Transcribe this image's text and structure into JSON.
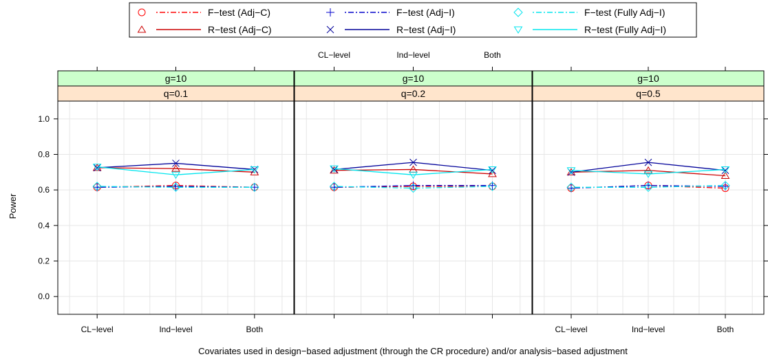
{
  "chart_data": {
    "type": "line",
    "ylabel": "Power",
    "xlabel": "Covariates used in design−based adjustment (through the CR procedure) and/or analysis−based adjustment",
    "categories": [
      "CL−level",
      "Ind−level",
      "Both"
    ],
    "ylim": [
      -0.1,
      1.1
    ],
    "yticks": [
      0.0,
      0.2,
      0.4,
      0.6,
      0.8,
      1.0
    ],
    "ytick_labels": [
      "0.0",
      "0.2",
      "0.4",
      "0.6",
      "0.8",
      "1.0"
    ],
    "grid": true,
    "legend_position": "top",
    "strip_colors": {
      "g": "#ccffcc",
      "q": "#ffe5cc"
    },
    "panels": [
      {
        "strip_g": "g=10",
        "strip_q": "q=0.1",
        "series": [
          {
            "name": "F−test (Adj−C)",
            "values": [
              0.615,
              0.625,
              0.615
            ]
          },
          {
            "name": "R−test (Adj−C)",
            "values": [
              0.725,
              0.72,
              0.7
            ]
          },
          {
            "name": "F−test (Adj−I)",
            "values": [
              0.615,
              0.62,
              0.615
            ]
          },
          {
            "name": "R−test (Adj−I)",
            "values": [
              0.725,
              0.75,
              0.715
            ]
          },
          {
            "name": "F−test (Fully Adj−I)",
            "values": [
              0.62,
              0.615,
              0.615
            ]
          },
          {
            "name": "R−test (Fully Adj−I)",
            "values": [
              0.73,
              0.685,
              0.715
            ]
          }
        ]
      },
      {
        "strip_g": "g=10",
        "strip_q": "q=0.2",
        "series": [
          {
            "name": "F−test (Adj−C)",
            "values": [
              0.615,
              0.62,
              0.62
            ]
          },
          {
            "name": "R−test (Adj−C)",
            "values": [
              0.71,
              0.715,
              0.69
            ]
          },
          {
            "name": "F−test (Adj−I)",
            "values": [
              0.615,
              0.625,
              0.625
            ]
          },
          {
            "name": "R−test (Adj−I)",
            "values": [
              0.715,
              0.755,
              0.71
            ]
          },
          {
            "name": "F−test (Fully Adj−I)",
            "values": [
              0.62,
              0.61,
              0.62
            ]
          },
          {
            "name": "R−test (Fully Adj−I)",
            "values": [
              0.72,
              0.685,
              0.715
            ]
          }
        ]
      },
      {
        "strip_g": "g=10",
        "strip_q": "q=0.5",
        "series": [
          {
            "name": "F−test (Adj−C)",
            "values": [
              0.61,
              0.625,
              0.61
            ]
          },
          {
            "name": "R−test (Adj−C)",
            "values": [
              0.7,
              0.71,
              0.68
            ]
          },
          {
            "name": "F−test (Adj−I)",
            "values": [
              0.61,
              0.625,
              0.62
            ]
          },
          {
            "name": "R−test (Adj−I)",
            "values": [
              0.7,
              0.755,
              0.71
            ]
          },
          {
            "name": "F−test (Fully Adj−I)",
            "values": [
              0.615,
              0.615,
              0.625
            ]
          },
          {
            "name": "R−test (Fully Adj−I)",
            "values": [
              0.71,
              0.69,
              0.715
            ]
          }
        ]
      }
    ]
  },
  "legend": {
    "items": [
      {
        "label": "F−test (Adj−C)",
        "symbol": "circle",
        "line": "dotdash",
        "color": "#ff0000"
      },
      {
        "label": "R−test (Adj−C)",
        "symbol": "triangle-up",
        "line": "solid",
        "color": "#cc0000"
      },
      {
        "label": "F−test (Adj−I)",
        "symbol": "plus",
        "line": "dotdash",
        "color": "#0000cc"
      },
      {
        "label": "R−test (Adj−I)",
        "symbol": "cross",
        "line": "solid",
        "color": "#000099"
      },
      {
        "label": "F−test (Fully Adj−I)",
        "symbol": "diamond",
        "line": "dotdash",
        "color": "#00e5ee"
      },
      {
        "label": "R−test (Fully Adj−I)",
        "symbol": "triangle-down",
        "line": "solid",
        "color": "#00e5ee"
      }
    ]
  }
}
